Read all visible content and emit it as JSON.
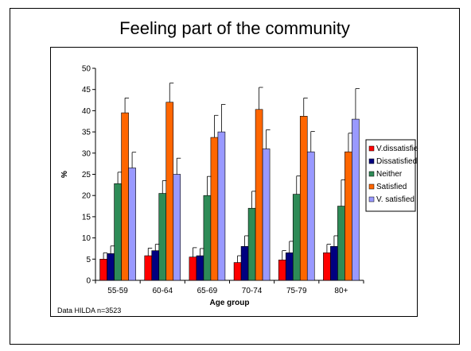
{
  "slide": {
    "title": "Feeling part of the community"
  },
  "chart_data": {
    "type": "bar",
    "title": "",
    "xlabel": "Age group",
    "ylabel": "%",
    "ylim": [
      0,
      50
    ],
    "yticks": [
      0,
      5,
      10,
      15,
      20,
      25,
      30,
      35,
      40,
      45,
      50
    ],
    "categories": [
      "55-59",
      "60-64",
      "65-69",
      "70-74",
      "75-79",
      "80+"
    ],
    "error_bars": true,
    "legend_position": "right",
    "grid": false,
    "series": [
      {
        "name": "V.dissatisfied",
        "color": "#ff0000",
        "values": [
          5.0,
          5.8,
          5.5,
          4.2,
          4.8,
          6.5
        ],
        "errors": [
          1.5,
          1.8,
          2.2,
          1.6,
          2.2,
          2.0
        ]
      },
      {
        "name": "Dissatisfied",
        "color": "#000080",
        "values": [
          6.3,
          7.0,
          5.8,
          8.0,
          6.5,
          8.0
        ],
        "errors": [
          1.8,
          1.5,
          1.7,
          2.5,
          2.7,
          2.5
        ]
      },
      {
        "name": "Neither",
        "color": "#2e8b57",
        "values": [
          22.8,
          20.5,
          20.0,
          17.0,
          20.3,
          17.5
        ],
        "errors": [
          2.7,
          3.0,
          4.5,
          4.0,
          4.3,
          6.2
        ]
      },
      {
        "name": "Satisfied",
        "color": "#ff6600",
        "values": [
          39.5,
          42.0,
          33.7,
          40.3,
          38.7,
          30.3
        ],
        "errors": [
          3.5,
          4.5,
          5.2,
          5.2,
          4.3,
          4.4
        ]
      },
      {
        "name": "V. satisfied",
        "color": "#9999ff",
        "values": [
          26.5,
          25.0,
          35.0,
          31.0,
          30.3,
          38.0
        ],
        "errors": [
          3.7,
          3.8,
          6.5,
          4.5,
          4.8,
          7.2
        ]
      }
    ],
    "annotation": "Data HILDA  n=3523"
  }
}
